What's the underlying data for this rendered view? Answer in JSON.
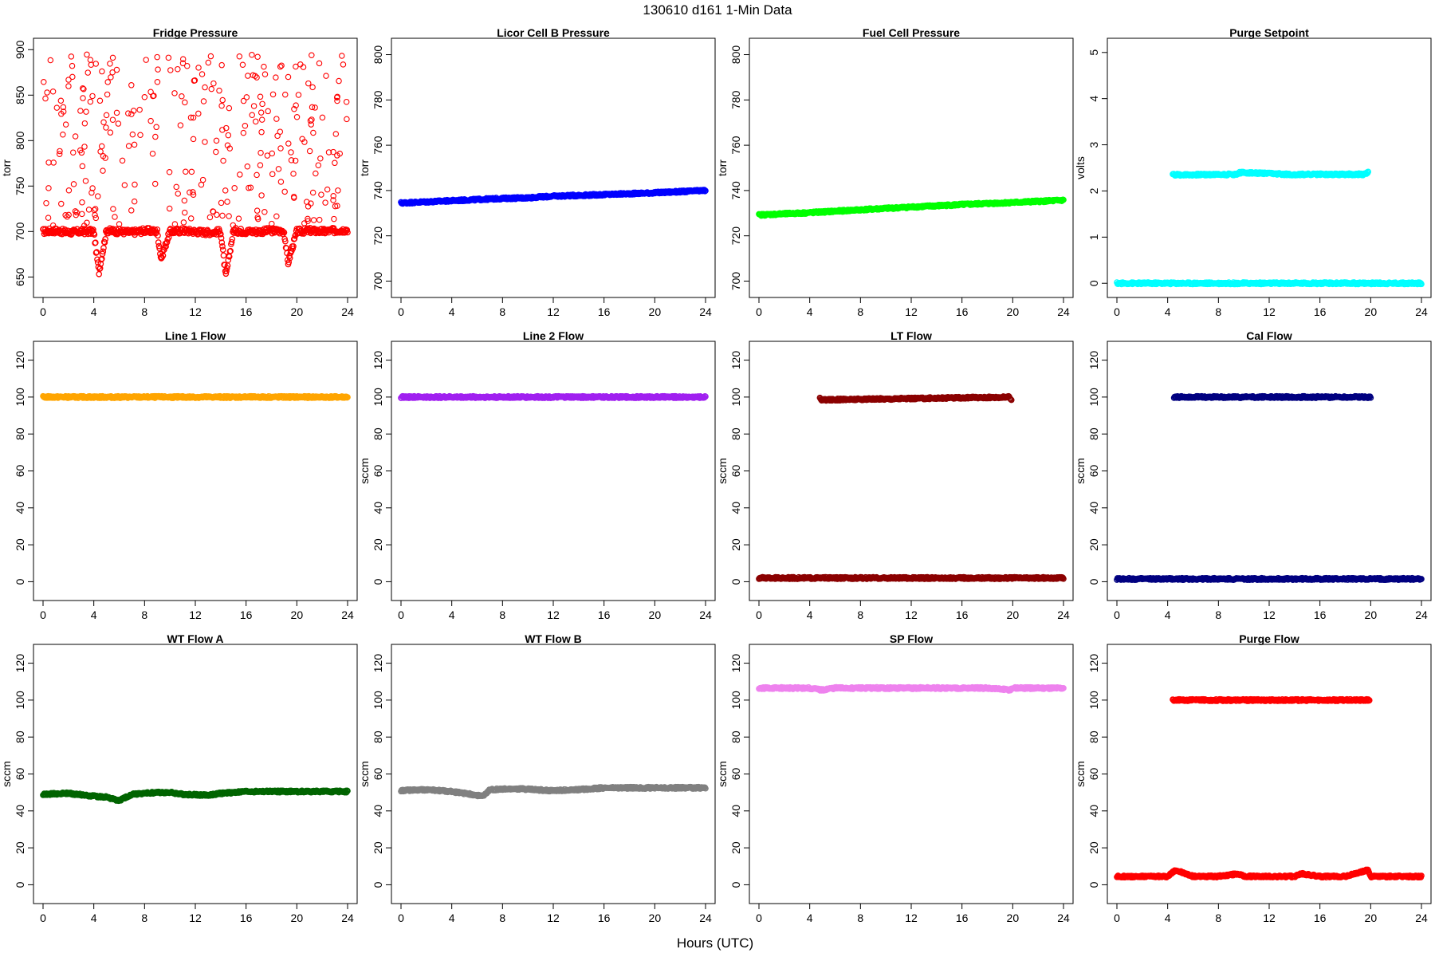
{
  "figure": {
    "title": "130610    d161    1-Min Data",
    "xlabel": "Hours (UTC)"
  },
  "chart_data": [
    {
      "type": "scatter",
      "title": "Fridge Pressure",
      "ylabel": "torr",
      "color": "#ff0000",
      "marker": "open-circle",
      "xlim": [
        0,
        24
      ],
      "ylim": [
        638,
        902
      ],
      "xticks": [
        0,
        4,
        8,
        12,
        16,
        20,
        24
      ],
      "yticks": [
        650,
        700,
        750,
        800,
        850,
        900
      ],
      "series": [
        {
          "x": [
            0,
            1,
            2,
            3,
            4,
            4.4,
            5,
            6,
            7,
            8,
            9,
            9.3,
            10,
            11,
            12,
            13,
            14,
            14.4,
            15,
            16,
            17,
            18,
            19,
            19.3,
            20,
            21,
            22,
            23,
            24
          ],
          "y": [
            700,
            701,
            699,
            700,
            700,
            655,
            701,
            700,
            699,
            701,
            700,
            670,
            700,
            701,
            700,
            699,
            700,
            650,
            701,
            700,
            700,
            701,
            700,
            665,
            700,
            701,
            700,
            701,
            702
          ]
        }
      ]
    },
    {
      "type": "scatter",
      "title": "Licor Cell B Pressure",
      "ylabel": "torr",
      "color": "#0000ff",
      "marker": "open-circle",
      "xlim": [
        0,
        24
      ],
      "ylim": [
        697,
        803
      ],
      "xticks": [
        0,
        4,
        8,
        12,
        16,
        20,
        24
      ],
      "yticks": [
        700,
        720,
        740,
        760,
        780,
        800
      ],
      "series": [
        {
          "x": [
            0,
            4,
            8,
            10,
            12,
            16,
            20,
            24
          ],
          "y": [
            734.5,
            735.5,
            736.5,
            736.8,
            737.5,
            738.2,
            739,
            740
          ]
        }
      ]
    },
    {
      "type": "scatter",
      "title": "Fuel Cell Pressure",
      "ylabel": "torr",
      "color": "#00ff00",
      "marker": "open-circle",
      "xlim": [
        0,
        24
      ],
      "ylim": [
        697,
        803
      ],
      "xticks": [
        0,
        4,
        8,
        12,
        16,
        20,
        24
      ],
      "yticks": [
        700,
        720,
        740,
        760,
        780,
        800
      ],
      "series": [
        {
          "x": [
            0,
            4,
            8,
            12,
            16,
            20,
            24
          ],
          "y": [
            729.2,
            730.2,
            731.5,
            732.7,
            733.8,
            734.7,
            735.7
          ]
        }
      ]
    },
    {
      "type": "scatter",
      "title": "Purge Setpoint",
      "ylabel": "volts",
      "color": "#00ffff",
      "marker": "open-circle",
      "xlim": [
        0,
        24
      ],
      "ylim": [
        -0.1,
        5.1
      ],
      "xticks": [
        0,
        4,
        8,
        12,
        16,
        20,
        24
      ],
      "yticks": [
        0,
        1,
        2,
        3,
        4,
        5
      ],
      "series": [
        {
          "x": [
            0,
            6,
            12,
            18,
            24
          ],
          "y": [
            0,
            0,
            0,
            0,
            0
          ]
        },
        {
          "x": [
            4.4,
            4.6,
            9.4,
            9.7,
            14.4,
            14.5,
            19.4,
            19.8
          ],
          "y": [
            2.37,
            2.35,
            2.36,
            2.4,
            2.35,
            2.36,
            2.36,
            2.4
          ]
        }
      ]
    },
    {
      "type": "scatter",
      "title": "Line 1 Flow",
      "ylabel": "",
      "color": "#ffa500",
      "marker": "open-circle",
      "xlim": [
        0,
        24
      ],
      "ylim": [
        -5,
        125
      ],
      "xticks": [
        0,
        4,
        8,
        12,
        16,
        20,
        24
      ],
      "yticks": [
        0,
        20,
        40,
        60,
        80,
        100,
        120
      ],
      "series": [
        {
          "x": [
            0,
            6,
            12,
            18,
            24
          ],
          "y": [
            100,
            100,
            100,
            100,
            100
          ]
        }
      ]
    },
    {
      "type": "scatter",
      "title": "Line 2 Flow",
      "ylabel": "sccm",
      "color": "#a020f0",
      "marker": "open-circle",
      "xlim": [
        0,
        24
      ],
      "ylim": [
        -5,
        125
      ],
      "xticks": [
        0,
        4,
        8,
        12,
        16,
        20,
        24
      ],
      "yticks": [
        0,
        20,
        40,
        60,
        80,
        100,
        120
      ],
      "series": [
        {
          "x": [
            0,
            6,
            12,
            18,
            24
          ],
          "y": [
            100,
            100,
            100,
            100,
            100
          ]
        }
      ]
    },
    {
      "type": "scatter",
      "title": "LT Flow",
      "ylabel": "sccm",
      "color": "#8b0000",
      "marker": "open-circle",
      "xlim": [
        0,
        24
      ],
      "ylim": [
        -5,
        125
      ],
      "xticks": [
        0,
        4,
        8,
        12,
        16,
        20,
        24
      ],
      "yticks": [
        0,
        20,
        40,
        60,
        80,
        100,
        120
      ],
      "series": [
        {
          "x": [
            0,
            6,
            12,
            18,
            24
          ],
          "y": [
            2,
            2,
            2,
            2,
            2
          ]
        },
        {
          "x": [
            4.8,
            4.9,
            19.7,
            19.9
          ],
          "y": [
            100,
            98.5,
            100,
            98.5
          ]
        }
      ]
    },
    {
      "type": "scatter",
      "title": "Cal Flow",
      "ylabel": "sccm",
      "color": "#000080",
      "marker": "open-circle",
      "xlim": [
        0,
        24
      ],
      "ylim": [
        -5,
        125
      ],
      "xticks": [
        0,
        4,
        8,
        12,
        16,
        20,
        24
      ],
      "yticks": [
        0,
        20,
        40,
        60,
        80,
        100,
        120
      ],
      "series": [
        {
          "x": [
            0,
            6,
            12,
            18,
            24
          ],
          "y": [
            1.5,
            1.5,
            1.5,
            1.5,
            1.5
          ]
        },
        {
          "x": [
            4.5,
            4.9,
            9.6,
            10.2,
            14.4,
            14.8,
            19.5,
            20
          ],
          "y": [
            100,
            100,
            100,
            100,
            100,
            100,
            100,
            100
          ]
        }
      ]
    },
    {
      "type": "scatter",
      "title": "WT Flow A",
      "ylabel": "sccm",
      "color": "#006400",
      "marker": "open-circle",
      "xlim": [
        0,
        24
      ],
      "ylim": [
        -5,
        125
      ],
      "xticks": [
        0,
        4,
        8,
        12,
        16,
        20,
        24
      ],
      "yticks": [
        0,
        20,
        40,
        60,
        80,
        100,
        120
      ],
      "series": [
        {
          "x": [
            0,
            2,
            4,
            5,
            6,
            7,
            9,
            10,
            11,
            13,
            14,
            16,
            20,
            24
          ],
          "y": [
            49,
            49.5,
            48,
            47.5,
            45.5,
            49,
            50,
            50,
            49,
            48.5,
            49.5,
            50.5,
            50.5,
            50.5
          ]
        }
      ]
    },
    {
      "type": "scatter",
      "title": "WT Flow B",
      "ylabel": "sccm",
      "color": "#808080",
      "marker": "open-circle",
      "xlim": [
        0,
        24
      ],
      "ylim": [
        -5,
        125
      ],
      "xticks": [
        0,
        4,
        8,
        12,
        16,
        20,
        24
      ],
      "yticks": [
        0,
        20,
        40,
        60,
        80,
        100,
        120
      ],
      "series": [
        {
          "x": [
            0,
            2,
            4,
            5,
            6,
            6.5,
            7,
            9,
            12,
            14,
            16,
            20,
            24
          ],
          "y": [
            51,
            51.5,
            50.5,
            49.5,
            48.5,
            48,
            51.5,
            52,
            51,
            51.5,
            52.5,
            52.5,
            52.5
          ]
        }
      ]
    },
    {
      "type": "scatter",
      "title": "SP Flow",
      "ylabel": "sccm",
      "color": "#ee82ee",
      "marker": "open-circle",
      "xlim": [
        0,
        24
      ],
      "ylim": [
        -5,
        125
      ],
      "xticks": [
        0,
        4,
        8,
        12,
        16,
        20,
        24
      ],
      "yticks": [
        0,
        20,
        40,
        60,
        80,
        100,
        120
      ],
      "series": [
        {
          "x": [
            0,
            4,
            4.9,
            6,
            12,
            18,
            19.8,
            20,
            24
          ],
          "y": [
            106.5,
            106.5,
            105.5,
            106.5,
            106.5,
            106.5,
            105.5,
            106.5,
            106.5
          ]
        }
      ]
    },
    {
      "type": "scatter",
      "title": "Purge Flow",
      "ylabel": "sccm",
      "color": "#ff0000",
      "marker": "open-circle",
      "xlim": [
        0,
        24
      ],
      "ylim": [
        -5,
        125
      ],
      "xticks": [
        0,
        4,
        8,
        12,
        16,
        20,
        24
      ],
      "yticks": [
        0,
        20,
        40,
        60,
        80,
        100,
        120
      ],
      "series": [
        {
          "x": [
            0,
            2,
            4,
            4.6,
            6,
            8,
            9.6,
            10,
            12,
            14,
            14.5,
            16,
            18,
            19.8,
            20,
            22,
            24
          ],
          "y": [
            4.5,
            4.5,
            4.5,
            8,
            4.5,
            4.5,
            6,
            4.5,
            4.5,
            4.5,
            6,
            4.5,
            4.5,
            8,
            4.5,
            4.5,
            4.5
          ]
        },
        {
          "x": [
            4.4,
            4.6,
            9.4,
            9.8,
            14.3,
            14.5,
            19.4,
            19.9
          ],
          "y": [
            100,
            100,
            100,
            100,
            100,
            100,
            100,
            100
          ]
        }
      ]
    }
  ]
}
